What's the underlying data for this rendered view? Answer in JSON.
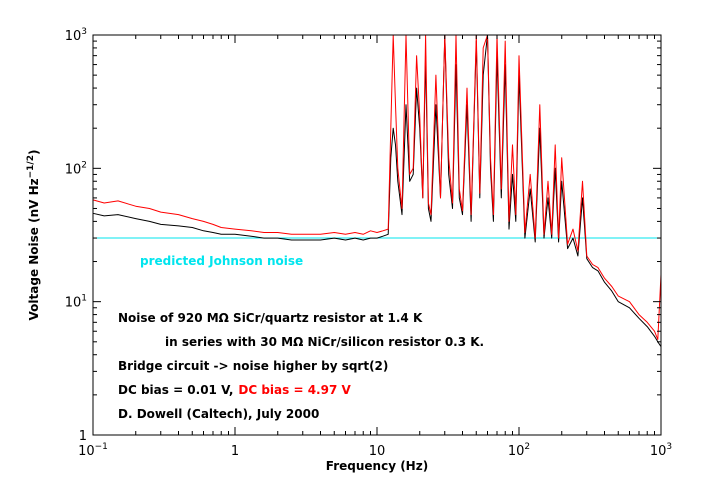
{
  "chart_data": {
    "type": "line",
    "title": "",
    "xlabel": "Frequency (Hz)",
    "ylabel_base": "Voltage Noise (nV Hz",
    "ylabel_exp": "−1/2",
    "ylabel_end": ")",
    "xscale": "log",
    "yscale": "log",
    "xlim": [
      0.1,
      1000
    ],
    "ylim": [
      1,
      1000
    ],
    "x_ticks": [
      {
        "value": 0.1,
        "base": "10",
        "exp": "−1"
      },
      {
        "value": 1,
        "base": "1",
        "exp": ""
      },
      {
        "value": 10,
        "base": "10",
        "exp": ""
      },
      {
        "value": 100,
        "base": "10",
        "exp": "2"
      },
      {
        "value": 1000,
        "base": "10",
        "exp": "3"
      }
    ],
    "y_ticks": [
      {
        "value": 1,
        "base": "1",
        "exp": ""
      },
      {
        "value": 10,
        "base": "10",
        "exp": "1"
      },
      {
        "value": 100,
        "base": "10",
        "exp": "2"
      },
      {
        "value": 1000,
        "base": "10",
        "exp": "3"
      }
    ],
    "grid": false,
    "reference_line": {
      "value": 30,
      "color": "#00e5ee",
      "label": "predicted Johnson noise"
    },
    "annotations": {
      "line1": "Noise of 920 MΩ SiCr/quartz resistor at 1.4 K",
      "line2": "in series with 30 MΩ NiCr/silicon resistor 0.3 K.",
      "line3": "Bridge circuit -> noise higher by sqrt(2)",
      "line4_black": "DC bias = 0.01 V,",
      "line4_red": "DC bias = 4.97 V",
      "line5": "D. Dowell (Caltech), July 2000"
    },
    "series": [
      {
        "color": "#000000",
        "x": [
          0.1,
          0.12,
          0.15,
          0.2,
          0.25,
          0.3,
          0.4,
          0.5,
          0.6,
          0.7,
          0.8,
          1,
          1.3,
          1.6,
          2,
          2.5,
          3,
          4,
          5,
          6,
          7,
          8,
          9,
          10,
          11,
          12,
          12.5,
          13,
          13.5,
          14,
          14.5,
          15,
          16,
          17,
          18,
          19,
          20,
          21,
          22,
          23,
          24,
          26,
          28,
          30,
          32,
          34,
          36,
          38,
          40,
          43,
          46,
          50,
          53,
          56,
          60,
          63,
          66,
          70,
          75,
          80,
          85,
          90,
          95,
          100,
          110,
          120,
          130,
          140,
          150,
          160,
          170,
          180,
          190,
          200,
          220,
          240,
          260,
          280,
          300,
          330,
          360,
          400,
          450,
          500,
          600,
          700,
          800,
          900,
          950,
          1000
        ],
        "values": [
          46,
          44,
          45,
          42,
          40,
          38,
          37,
          36,
          34,
          33,
          32,
          32,
          31,
          30,
          30,
          29,
          29,
          29,
          30,
          29,
          30,
          29,
          30,
          30,
          31,
          32,
          120,
          200,
          150,
          80,
          60,
          45,
          300,
          80,
          90,
          400,
          200,
          60,
          700,
          50,
          40,
          300,
          60,
          1000,
          90,
          50,
          600,
          60,
          45,
          300,
          40,
          900,
          60,
          500,
          1000,
          100,
          40,
          700,
          60,
          600,
          35,
          90,
          40,
          500,
          30,
          70,
          28,
          200,
          30,
          60,
          30,
          100,
          28,
          80,
          25,
          30,
          22,
          60,
          21,
          18,
          17,
          14,
          12,
          10,
          9,
          7.5,
          6.5,
          5.5,
          5,
          4.6
        ]
      },
      {
        "color": "#ff0000",
        "x": [
          0.1,
          0.12,
          0.15,
          0.2,
          0.25,
          0.3,
          0.4,
          0.5,
          0.6,
          0.7,
          0.8,
          1,
          1.3,
          1.6,
          2,
          2.5,
          3,
          4,
          5,
          6,
          7,
          8,
          9,
          10,
          11,
          12,
          12.5,
          13,
          13.5,
          14,
          14.5,
          15,
          16,
          17,
          18,
          19,
          20,
          21,
          22,
          23,
          24,
          26,
          28,
          30,
          32,
          34,
          36,
          38,
          40,
          43,
          46,
          50,
          53,
          56,
          60,
          63,
          66,
          70,
          75,
          80,
          85,
          90,
          95,
          100,
          110,
          120,
          130,
          140,
          150,
          160,
          170,
          180,
          190,
          200,
          220,
          240,
          260,
          280,
          300,
          330,
          360,
          400,
          450,
          500,
          600,
          700,
          800,
          900,
          950,
          1000
        ],
        "values": [
          58,
          55,
          57,
          52,
          50,
          47,
          45,
          42,
          40,
          38,
          36,
          35,
          34,
          33,
          33,
          32,
          32,
          32,
          33,
          32,
          33,
          32,
          34,
          33,
          34,
          35,
          200,
          1000,
          300,
          100,
          70,
          50,
          1000,
          90,
          100,
          700,
          250,
          60,
          1000,
          55,
          45,
          500,
          60,
          1000,
          120,
          55,
          1000,
          70,
          48,
          400,
          45,
          1000,
          65,
          800,
          1000,
          120,
          45,
          1000,
          70,
          900,
          40,
          150,
          45,
          700,
          33,
          90,
          30,
          300,
          32,
          80,
          32,
          150,
          30,
          120,
          27,
          35,
          24,
          80,
          22,
          19,
          18,
          15,
          13,
          11,
          10,
          8,
          7,
          6,
          5.2,
          16
        ]
      }
    ]
  }
}
